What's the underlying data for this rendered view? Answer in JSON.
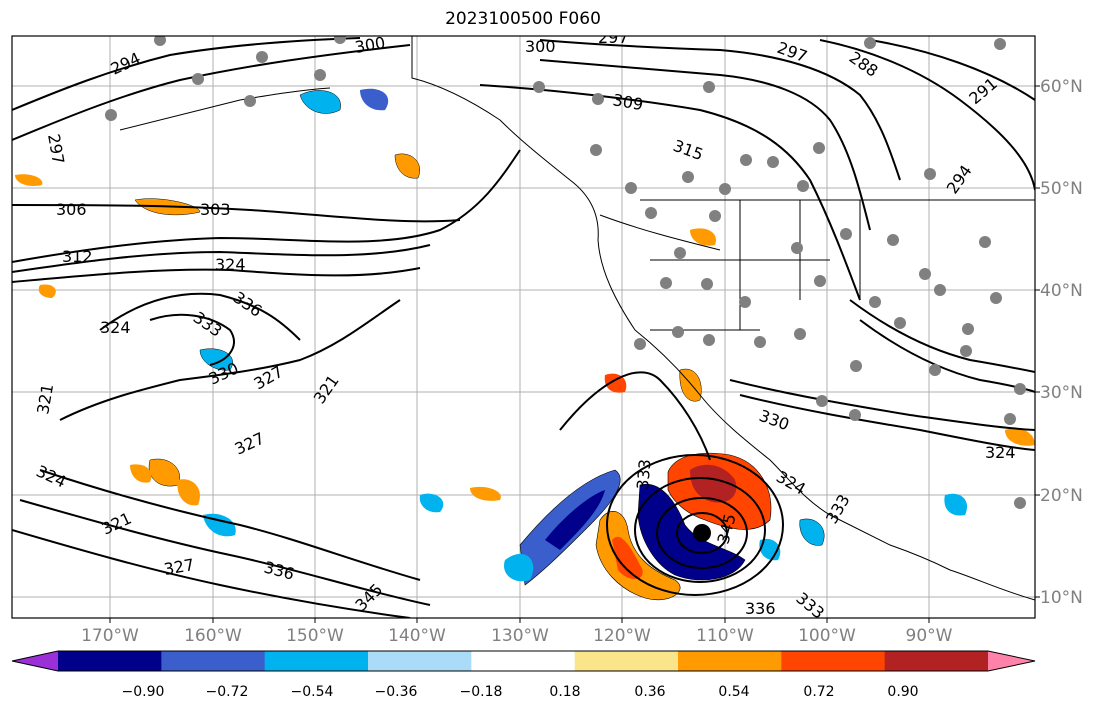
{
  "title": "2023100500 F060",
  "lat_labels": [
    "60°N",
    "50°N",
    "40°N",
    "30°N",
    "20°N",
    "10°N"
  ],
  "lon_labels": [
    "170°W",
    "160°W",
    "150°W",
    "140°W",
    "130°W",
    "120°W",
    "110°W",
    "100°W",
    "90°W"
  ],
  "contour_labels": [
    "294",
    "300",
    "300",
    "297",
    "297",
    "288",
    "291",
    "297",
    "309",
    "315",
    "306",
    "303",
    "294",
    "312",
    "324",
    "336",
    "333",
    "324",
    "330",
    "327",
    "321",
    "321",
    "330",
    "324",
    "321",
    "327",
    "327",
    "336",
    "345",
    "333",
    "345",
    "336",
    "333",
    "324",
    "333",
    "324"
  ],
  "colorbar": {
    "ticks": [
      "−0.90",
      "−0.72",
      "−0.54",
      "−0.36",
      "−0.18",
      "0.18",
      "0.36",
      "0.54",
      "0.72",
      "0.90"
    ],
    "colors": [
      "#9b30d8",
      "#00008b",
      "#3a5fcd",
      "#00b2ee",
      "#aadcf7",
      "#ffffff",
      "#fbe58a",
      "#ff9a00",
      "#ff4500",
      "#b22222",
      "#ff82ab"
    ]
  },
  "colors": {
    "axis_label": "#808080",
    "grid": "#b0b0b0",
    "contour": "#000000",
    "station": "#808080",
    "center_marker": "#000000"
  }
}
